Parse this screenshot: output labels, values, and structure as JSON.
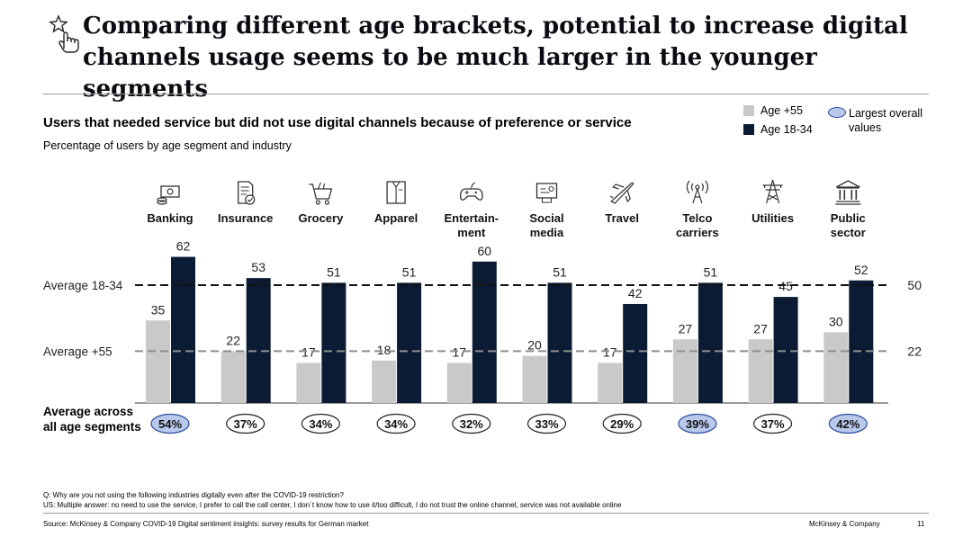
{
  "title": "Comparing different age brackets, potential to increase digital channels usage seems to be much larger in the younger segments",
  "subtitle": "Users that needed service but did not use digital channels because of preference or service",
  "subsubtitle": "Percentage of users by age segment and industry",
  "legend": {
    "older": "Age +55",
    "younger": "Age 18-34",
    "highlight": "Largest overall values"
  },
  "average_row_label": "Average across all age segments",
  "colors": {
    "older": "#c9c9c9",
    "younger": "#0a1b33",
    "highlight_fill": "#b9c9ec",
    "highlight_stroke": "#2b4c9b"
  },
  "chart_data": {
    "type": "bar",
    "categories": [
      {
        "label": "Banking",
        "icon": "money-icon"
      },
      {
        "label": "Insurance",
        "icon": "document-check-icon"
      },
      {
        "label": "Grocery",
        "icon": "shopping-cart-icon"
      },
      {
        "label": "Apparel",
        "icon": "shirt-icon"
      },
      {
        "label": "Entertain-\nment",
        "icon": "gamepad-icon"
      },
      {
        "label": "Social\nmedia",
        "icon": "social-media-icon"
      },
      {
        "label": "Travel",
        "icon": "airplane-icon"
      },
      {
        "label": "Telco\ncarriers",
        "icon": "antenna-icon"
      },
      {
        "label": "Utilities",
        "icon": "power-tower-icon"
      },
      {
        "label": "Public\nsector",
        "icon": "government-building-icon"
      }
    ],
    "series": [
      {
        "name": "Age +55",
        "values": [
          35,
          22,
          17,
          18,
          17,
          20,
          17,
          27,
          27,
          30
        ]
      },
      {
        "name": "Age 18-34",
        "values": [
          62,
          53,
          51,
          51,
          60,
          51,
          42,
          51,
          45,
          52
        ]
      }
    ],
    "averages": [
      {
        "label": "Average 18-34",
        "value": 50
      },
      {
        "label": "Average +55",
        "value": 22
      }
    ],
    "overall_average": [
      "54%",
      "37%",
      "34%",
      "34%",
      "32%",
      "33%",
      "29%",
      "39%",
      "37%",
      "42%"
    ],
    "highlighted": [
      true,
      false,
      false,
      false,
      false,
      false,
      false,
      true,
      false,
      true
    ],
    "ylim": [
      0,
      70
    ]
  },
  "footnotes": {
    "question": "Q: Why are you not using the following industries digitally even after the COVID-19 restriction?",
    "answers": "US: Multiple answer: no need to use the service, I prefer to call the call center, I don´t know how to use it/too difficult, I do not trust the online channel, service was not available online"
  },
  "source": "Source: McKinsey & Company COVID-19 Digital sentiment insights: survey results for German market",
  "company": "McKinsey & Company",
  "page_number": "11"
}
